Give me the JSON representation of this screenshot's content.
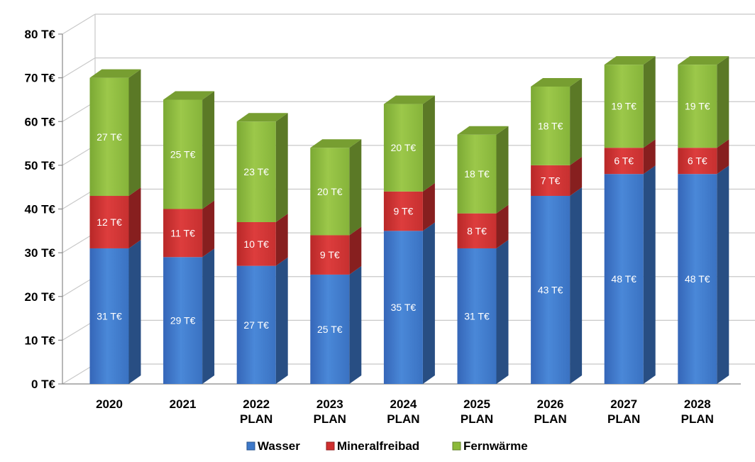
{
  "chart_data": {
    "type": "bar",
    "stacked": true,
    "three_d": true,
    "categories": [
      [
        "2020"
      ],
      [
        "2021"
      ],
      [
        "2022",
        "PLAN"
      ],
      [
        "2023",
        "PLAN"
      ],
      [
        "2024",
        "PLAN"
      ],
      [
        "2025",
        "PLAN"
      ],
      [
        "2026",
        "PLAN"
      ],
      [
        "2027",
        "PLAN"
      ],
      [
        "2028",
        "PLAN"
      ]
    ],
    "series": [
      {
        "name": "Wasser",
        "color": "#3d78c9",
        "values": [
          31,
          29,
          27,
          25,
          35,
          31,
          43,
          48,
          48
        ],
        "labels": [
          "31 T€",
          "29 T€",
          "27 T€",
          "25 T€",
          "35 T€",
          "31 T€",
          "43 T€",
          "48 T€",
          "48 T€"
        ]
      },
      {
        "name": "Mineralfreibad",
        "color": "#cf2f2f",
        "values": [
          12,
          11,
          10,
          9,
          9,
          8,
          7,
          6,
          6
        ],
        "labels": [
          "12 T€",
          "11 T€",
          "10 T€",
          "9 T€",
          "9 T€",
          "8 T€",
          "7 T€",
          "6 T€",
          "6 T€"
        ]
      },
      {
        "name": "Fernwärme",
        "color": "#8cba3a",
        "values": [
          27,
          25,
          23,
          20,
          20,
          18,
          18,
          19,
          19
        ],
        "labels": [
          "27 T€",
          "25 T€",
          "23 T€",
          "20 T€",
          "20 T€",
          "18 T€",
          "18 T€",
          "19 T€",
          "19 T€"
        ]
      }
    ],
    "ylim": [
      0,
      80
    ],
    "yticks": [
      0,
      10,
      20,
      30,
      40,
      50,
      60,
      70,
      80
    ],
    "ytick_labels": [
      "0 T€",
      "10 T€",
      "20 T€",
      "30 T€",
      "40 T€",
      "50 T€",
      "60 T€",
      "70 T€",
      "80 T€"
    ],
    "grid": true,
    "legend_position": "bottom"
  }
}
